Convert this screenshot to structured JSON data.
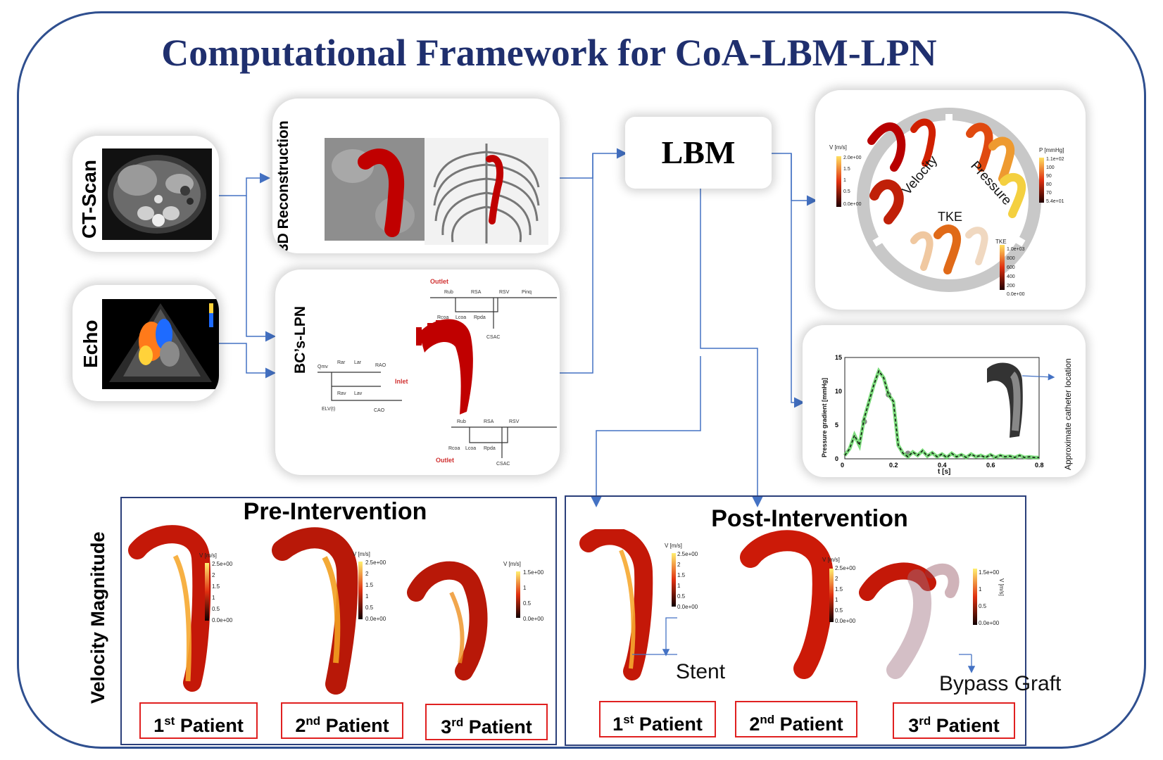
{
  "title": "Computational Framework for CoA-LBM-LPN",
  "inputs": {
    "ct_label": "CT-Scan",
    "echo_label": "Echo"
  },
  "recon": {
    "label": "3D Reconstruction"
  },
  "lpn": {
    "label": "BC’s-LPN",
    "outlet_top": "Outlet",
    "outlet_bottom": "Outlet",
    "inlet": "Inlet",
    "r_ub": "Rub",
    "r_sa": "RSA",
    "r_sv": "RSV",
    "p_ing": "Pinq",
    "r_coa": "Rcoa",
    "l_coa": "Lcoa",
    "r_pda": "Rpda",
    "c_sac": "CSAC",
    "r_ar": "Rar",
    "l_ar": "Lar",
    "r_av": "Rav",
    "l_av": "Lav",
    "r_ao": "RAO",
    "c_ao": "CAO",
    "q_mv": "Qmv",
    "e_lv": "ELV(t)"
  },
  "lbm": {
    "label": "LBM"
  },
  "results": {
    "velocity": "Velocity",
    "pressure": "Pressure",
    "tke": "TKE",
    "v_unit": "V [m/s]",
    "v_ticks": [
      "2.0e+00",
      "1.5",
      "1",
      "0.5",
      "0.0e+00"
    ],
    "p_unit": "P [mmHg]",
    "p_ticks": [
      "1.1e+02",
      "100",
      "90",
      "80",
      "70",
      "5.4e+01"
    ],
    "tke_unit": "TKE",
    "tke_ticks": [
      "1.0e+03",
      "800",
      "600",
      "400",
      "200",
      "0.0e+00"
    ]
  },
  "gradient_chart": {
    "ylabel": "Pressure gradient [mmHg]",
    "xlabel": "t [s]",
    "side_label": "Approximate catheter location",
    "xticks": [
      "0",
      "0.2",
      "0.4",
      "0.6",
      "0.8"
    ],
    "yticks": [
      "0",
      "5",
      "10",
      "15"
    ]
  },
  "chart_data": {
    "type": "line",
    "xlabel": "t [s]",
    "ylabel": "Pressure gradient [mmHg]",
    "xlim": [
      0,
      0.8
    ],
    "ylim": [
      0,
      15
    ],
    "x": [
      0,
      0.02,
      0.04,
      0.06,
      0.08,
      0.1,
      0.12,
      0.14,
      0.16,
      0.18,
      0.2,
      0.22,
      0.24,
      0.26,
      0.28,
      0.3,
      0.32,
      0.34,
      0.36,
      0.38,
      0.4,
      0.42,
      0.44,
      0.46,
      0.48,
      0.5,
      0.52,
      0.54,
      0.56,
      0.58,
      0.6,
      0.62,
      0.64,
      0.66,
      0.68,
      0.7,
      0.72,
      0.74,
      0.76,
      0.78,
      0.8
    ],
    "series": [
      {
        "values": [
          0.5,
          1.5,
          3.5,
          2.0,
          6.0,
          8.5,
          11.0,
          13.0,
          12.0,
          9.5,
          8.5,
          2.0,
          0.8,
          0.3,
          1.0,
          0.5,
          1.2,
          0.4,
          0.9,
          0.3,
          0.7,
          0.2,
          0.8,
          0.3,
          0.6,
          0.2,
          0.7,
          0.3,
          0.5,
          0.2,
          0.6,
          0.2,
          0.5,
          0.3,
          0.4,
          0.2,
          0.5,
          0.2,
          0.3,
          0.2,
          0.2
        ]
      }
    ]
  },
  "velocity_magnitude_label": "Velocity Magnitude",
  "pre": {
    "title": "Pre-Intervention",
    "patients": [
      {
        "ord": "1",
        "sup": "st",
        "label": " Patient",
        "unit": "V [m/s]",
        "ticks": [
          "2.5e+00",
          "2",
          "1.5",
          "1",
          "0.5",
          "0.0e+00"
        ]
      },
      {
        "ord": "2",
        "sup": "nd",
        "label": " Patient",
        "unit": "V [m/s]",
        "ticks": [
          "2.5e+00",
          "2",
          "1.5",
          "1",
          "0.5",
          "0.0e+00"
        ]
      },
      {
        "ord": "3",
        "sup": "rd",
        "label": "  Patient",
        "unit": "V [m/s]",
        "ticks": [
          "1.5e+00",
          "1",
          "0.5",
          "0.0e+00"
        ]
      }
    ]
  },
  "post": {
    "title": "Post-Intervention",
    "stent": "Stent",
    "bypass": "Bypass Graft",
    "patients": [
      {
        "ord": "1",
        "sup": "st",
        "label": " Patient",
        "unit": "V [m/s]",
        "ticks": [
          "2.5e+00",
          "2",
          "1.5",
          "1",
          "0.5",
          "0.0e+00"
        ]
      },
      {
        "ord": "2",
        "sup": "nd",
        "label": " Patient",
        "unit": "V [m/s]",
        "ticks": [
          "2.5e+00",
          "2",
          "1.5",
          "1",
          "0.5",
          "0.0e+00"
        ]
      },
      {
        "ord": "3",
        "sup": "rd",
        "label": "  Patient",
        "unit": "V [m/s]",
        "ticks": [
          "1.5e+00",
          "1",
          "0.5",
          "0.0e+00"
        ]
      }
    ]
  },
  "colors": {
    "frame": "#2f4f8f",
    "title": "#1f2f6e",
    "arrow": "#4472c4",
    "aorta_dark": "#b00000",
    "aorta_mid": "#e03010",
    "flow_bright": "#ffd23a",
    "box_red": "#e02020",
    "grad_green": "#5cd35c"
  }
}
